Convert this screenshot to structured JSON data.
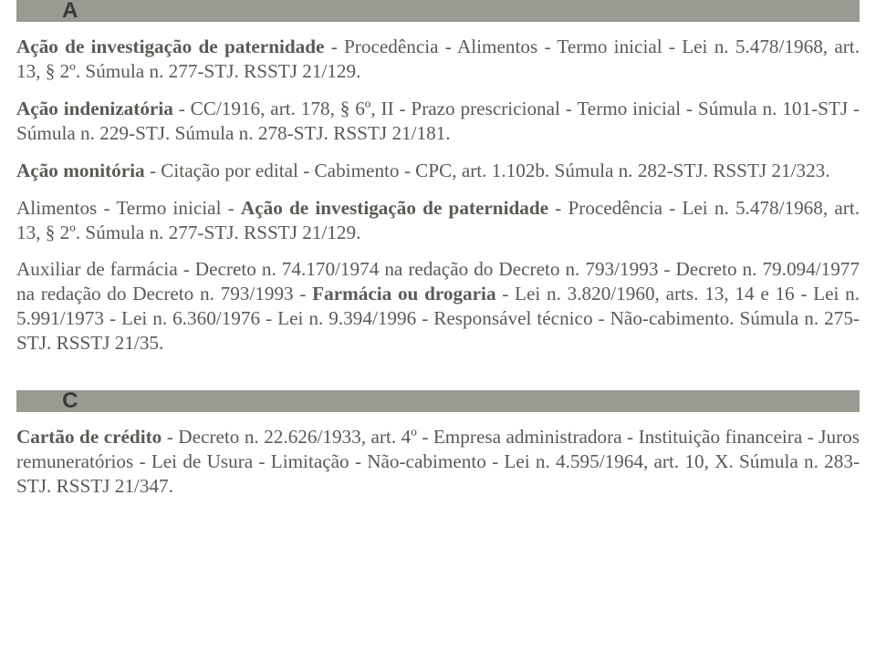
{
  "sections": {
    "A": {
      "letter": "A",
      "entries": [
        "<b>Ação de investigação de paternidade</b> - Procedência - Alimentos - Termo inicial - Lei n. 5.478/1968, art. 13, § 2º. Súmula n. 277-STJ. RSSTJ 21/129.",
        "<b>Ação indenizatória</b> - CC/1916, art. 178, § 6º, II - Prazo prescricional - Termo inicial - Súmula n. 101-STJ - Súmula n. 229-STJ. Súmula n. 278-STJ. RSSTJ 21/181.",
        "<b>Ação monitória</b> - Citação por edital - Cabimento - CPC, art. 1.102b. Súmula n. 282-STJ. RSSTJ 21/323.",
        "Alimentos - Termo inicial - <b>Ação de investigação de paternidade</b> - Procedência - Lei n. 5.478/1968, art. 13, § 2º. Súmula n. 277-STJ. RSSTJ 21/129.",
        "Auxiliar de farmácia - Decreto n. 74.170/1974 na redação do Decreto n. 793/1993 - Decreto n. 79.094/1977 na redação do Decreto n. 793/1993 - <b>Farmácia ou drogaria</b> - Lei n. 3.820/1960, arts. 13, 14 e 16 - Lei n. 5.991/1973 - Lei n. 6.360/1976 - Lei n. 9.394/1996 - Responsável técnico - Não-cabimento. Súmula n. 275-STJ. RSSTJ 21/35."
      ]
    },
    "C": {
      "letter": "C",
      "entries": [
        "<b>Cartão de crédito</b> - Decreto n. 22.626/1933, art. 4º - Empresa administradora - Instituição financeira - Juros remuneratórios - Lei de Usura - Limitação - Não-cabimento - Lei n. 4.595/1964, art. 10, X. Súmula n. 283-STJ. RSSTJ 21/347."
      ]
    }
  },
  "styles": {
    "header_bg": "#9a9a92",
    "text_color": "#5a5a55",
    "letter_color": "#3a3a36",
    "body_font_size": 21.2,
    "line_height": 1.27,
    "letter_font_size": 24
  }
}
